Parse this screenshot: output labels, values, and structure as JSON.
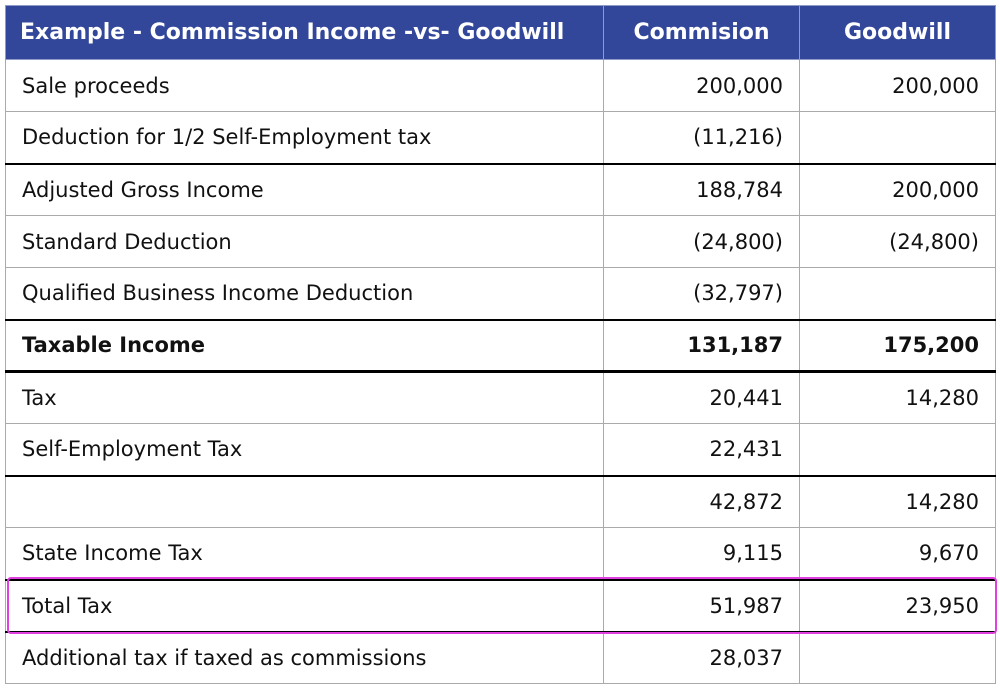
{
  "table": {
    "header": [
      "Example - Commission Income -vs- Goodwill",
      "Commision",
      "Goodwill"
    ],
    "rows": [
      [
        "Sale proceeds",
        "200,000",
        "200,000"
      ],
      [
        "Deduction for 1/2 Self-Employment tax",
        "(11,216)",
        null
      ],
      [
        "Adjusted Gross Income",
        "188,784",
        "200,000"
      ],
      [
        "Standard Deduction",
        "(24,800)",
        "(24,800)"
      ],
      [
        "Qualified Business Income Deduction",
        "(32,797)",
        null
      ],
      [
        "Taxable Income",
        "131,187",
        "175,200"
      ],
      [
        "Tax",
        "20,441",
        "14,280"
      ],
      [
        "Self-Employment Tax",
        "22,431",
        null
      ],
      [
        null,
        "42,872",
        "14,280"
      ],
      [
        "State Income Tax",
        "9,115",
        "9,670"
      ],
      [
        "Total Tax",
        "51,987",
        "23,950"
      ],
      [
        "Additional tax if taxed as commissions",
        "28,037",
        null
      ]
    ]
  }
}
